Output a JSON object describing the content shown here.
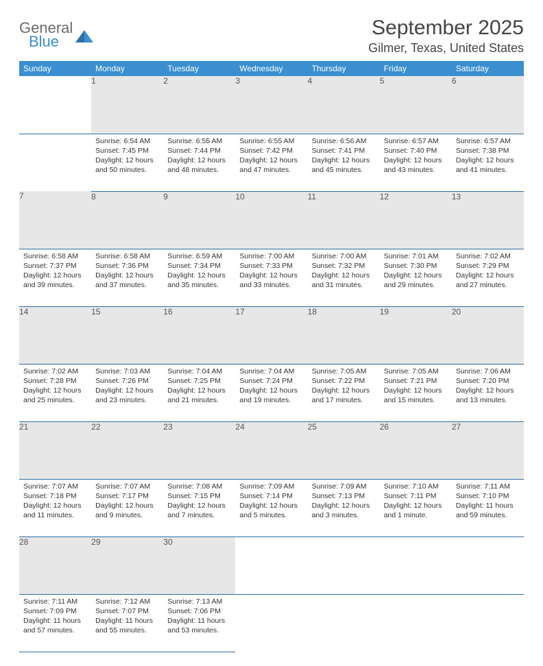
{
  "brand": {
    "name_a": "General",
    "name_b": "Blue"
  },
  "title": "September 2025",
  "location": "Gilmer, Texas, United States",
  "colors": {
    "header_bg": "#3a8fd0",
    "header_text": "#ffffff",
    "daynum_bg": "#e7e7e7",
    "row_divider": "#2f6ea3",
    "body_text": "#333333",
    "title_text": "#444444",
    "logo_gray": "#6b6b6b",
    "logo_blue": "#3a8fd0"
  },
  "day_headers": [
    "Sunday",
    "Monday",
    "Tuesday",
    "Wednesday",
    "Thursday",
    "Friday",
    "Saturday"
  ],
  "weeks": [
    {
      "nums": [
        "",
        "1",
        "2",
        "3",
        "4",
        "5",
        "6"
      ],
      "cells": [
        null,
        {
          "sunrise": "6:54 AM",
          "sunset": "7:45 PM",
          "daylight": "12 hours and 50 minutes."
        },
        {
          "sunrise": "6:55 AM",
          "sunset": "7:44 PM",
          "daylight": "12 hours and 48 minutes."
        },
        {
          "sunrise": "6:55 AM",
          "sunset": "7:42 PM",
          "daylight": "12 hours and 47 minutes."
        },
        {
          "sunrise": "6:56 AM",
          "sunset": "7:41 PM",
          "daylight": "12 hours and 45 minutes."
        },
        {
          "sunrise": "6:57 AM",
          "sunset": "7:40 PM",
          "daylight": "12 hours and 43 minutes."
        },
        {
          "sunrise": "6:57 AM",
          "sunset": "7:38 PM",
          "daylight": "12 hours and 41 minutes."
        }
      ]
    },
    {
      "nums": [
        "7",
        "8",
        "9",
        "10",
        "11",
        "12",
        "13"
      ],
      "cells": [
        {
          "sunrise": "6:58 AM",
          "sunset": "7:37 PM",
          "daylight": "12 hours and 39 minutes."
        },
        {
          "sunrise": "6:58 AM",
          "sunset": "7:36 PM",
          "daylight": "12 hours and 37 minutes."
        },
        {
          "sunrise": "6:59 AM",
          "sunset": "7:34 PM",
          "daylight": "12 hours and 35 minutes."
        },
        {
          "sunrise": "7:00 AM",
          "sunset": "7:33 PM",
          "daylight": "12 hours and 33 minutes."
        },
        {
          "sunrise": "7:00 AM",
          "sunset": "7:32 PM",
          "daylight": "12 hours and 31 minutes."
        },
        {
          "sunrise": "7:01 AM",
          "sunset": "7:30 PM",
          "daylight": "12 hours and 29 minutes."
        },
        {
          "sunrise": "7:02 AM",
          "sunset": "7:29 PM",
          "daylight": "12 hours and 27 minutes."
        }
      ]
    },
    {
      "nums": [
        "14",
        "15",
        "16",
        "17",
        "18",
        "19",
        "20"
      ],
      "cells": [
        {
          "sunrise": "7:02 AM",
          "sunset": "7:28 PM",
          "daylight": "12 hours and 25 minutes."
        },
        {
          "sunrise": "7:03 AM",
          "sunset": "7:26 PM",
          "daylight": "12 hours and 23 minutes."
        },
        {
          "sunrise": "7:04 AM",
          "sunset": "7:25 PM",
          "daylight": "12 hours and 21 minutes."
        },
        {
          "sunrise": "7:04 AM",
          "sunset": "7:24 PM",
          "daylight": "12 hours and 19 minutes."
        },
        {
          "sunrise": "7:05 AM",
          "sunset": "7:22 PM",
          "daylight": "12 hours and 17 minutes."
        },
        {
          "sunrise": "7:05 AM",
          "sunset": "7:21 PM",
          "daylight": "12 hours and 15 minutes."
        },
        {
          "sunrise": "7:06 AM",
          "sunset": "7:20 PM",
          "daylight": "12 hours and 13 minutes."
        }
      ]
    },
    {
      "nums": [
        "21",
        "22",
        "23",
        "24",
        "25",
        "26",
        "27"
      ],
      "cells": [
        {
          "sunrise": "7:07 AM",
          "sunset": "7:18 PM",
          "daylight": "12 hours and 11 minutes."
        },
        {
          "sunrise": "7:07 AM",
          "sunset": "7:17 PM",
          "daylight": "12 hours and 9 minutes."
        },
        {
          "sunrise": "7:08 AM",
          "sunset": "7:15 PM",
          "daylight": "12 hours and 7 minutes."
        },
        {
          "sunrise": "7:09 AM",
          "sunset": "7:14 PM",
          "daylight": "12 hours and 5 minutes."
        },
        {
          "sunrise": "7:09 AM",
          "sunset": "7:13 PM",
          "daylight": "12 hours and 3 minutes."
        },
        {
          "sunrise": "7:10 AM",
          "sunset": "7:11 PM",
          "daylight": "12 hours and 1 minute."
        },
        {
          "sunrise": "7:11 AM",
          "sunset": "7:10 PM",
          "daylight": "11 hours and 59 minutes."
        }
      ]
    },
    {
      "nums": [
        "28",
        "29",
        "30",
        "",
        "",
        "",
        ""
      ],
      "cells": [
        {
          "sunrise": "7:11 AM",
          "sunset": "7:09 PM",
          "daylight": "11 hours and 57 minutes."
        },
        {
          "sunrise": "7:12 AM",
          "sunset": "7:07 PM",
          "daylight": "11 hours and 55 minutes."
        },
        {
          "sunrise": "7:13 AM",
          "sunset": "7:06 PM",
          "daylight": "11 hours and 53 minutes."
        },
        null,
        null,
        null,
        null
      ]
    }
  ],
  "labels": {
    "sunrise": "Sunrise: ",
    "sunset": "Sunset: ",
    "daylight": "Daylight: "
  }
}
